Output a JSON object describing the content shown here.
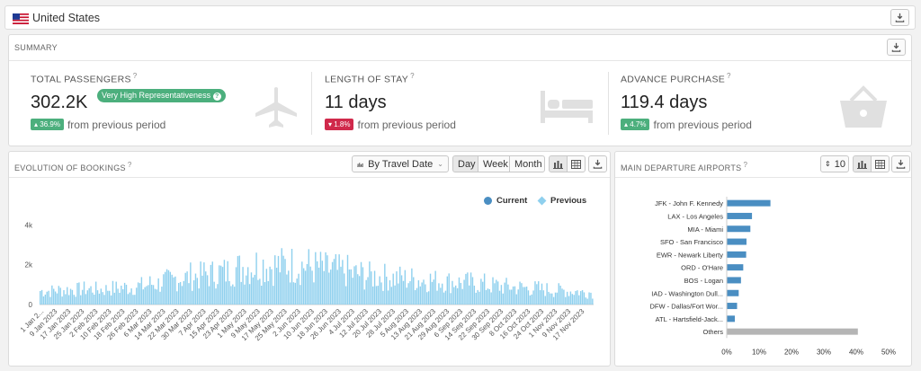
{
  "country": {
    "name": "United States",
    "flag_icon": "us-flag-icon"
  },
  "summary": {
    "title": "SUMMARY",
    "kpis": [
      {
        "label": "TOTAL PASSENGERS",
        "value": "302.2K",
        "change": "36.9%",
        "direction": "up",
        "change_text": "from previous period",
        "representativeness": "Very High Representativeness",
        "icon": "airplane-icon"
      },
      {
        "label": "LENGTH OF STAY",
        "value": "11 days",
        "change": "1.8%",
        "direction": "down",
        "change_text": "from previous period",
        "icon": "bed-icon"
      },
      {
        "label": "ADVANCE PURCHASE",
        "value": "119.4 days",
        "change": "4.7%",
        "direction": "up",
        "change_text": "from previous period",
        "icon": "basket-icon"
      }
    ]
  },
  "evolution": {
    "title": "EVOLUTION OF BOOKINGS",
    "group_by": "By Travel Date",
    "granularity": [
      "Day",
      "Week",
      "Month"
    ],
    "selected_granularity": "Day"
  },
  "airports": {
    "title": "MAIN DEPARTURE AIRPORTS",
    "top_n": "10"
  },
  "colors": {
    "current": "#4a8ec2",
    "previous": "#8fd0ee",
    "others": "#b5b5b5",
    "up": "#4caf7d",
    "down": "#d0294b"
  },
  "chart_data": [
    {
      "type": "bar",
      "title": "EVOLUTION OF BOOKINGS",
      "legend": [
        "Current",
        "Previous"
      ],
      "legend_position": "top-right",
      "y_ticks": [
        "0",
        "2k",
        "4k"
      ],
      "ylim": [
        0,
        4600
      ],
      "x_tick_labels": [
        "1 Jan 2...",
        "9 Jan 2023",
        "17 Jan 2023",
        "25 Jan 2023",
        "2 Feb 2023",
        "10 Feb 2023",
        "18 Feb 2023",
        "26 Feb 2023",
        "6 Mar 2023",
        "14 Mar 2023",
        "22 Mar 2023",
        "30 Mar 2023",
        "7 Apr 2023",
        "15 Apr 2023",
        "23 Apr 2023",
        "1 May 2023",
        "9 May 2023",
        "17 May 2023",
        "25 May 2023",
        "2 Jun 2023",
        "10 Jun 2023",
        "18 Jun 2023",
        "26 Jun 2023",
        "4 Jul 2023",
        "12 Jul 2023",
        "20 Jul 2023",
        "28 Jul 2023",
        "5 Aug 2023",
        "13 Aug 2023",
        "21 Aug 2023",
        "29 Aug 2023",
        "6 Sep 2023",
        "14 Sep 2023",
        "22 Sep 2023",
        "30 Sep 2023",
        "8 Oct 2023",
        "16 Oct 2023",
        "24 Oct 2023",
        "1 Nov 2023",
        "9 Nov 2023",
        "17 Nov 2023"
      ],
      "series": [
        {
          "name": "Current",
          "values": [
            720,
            760,
            780,
            820,
            800,
            860,
            900,
            980,
            1100,
            1250,
            1400,
            1500,
            1600,
            1700,
            1900,
            2000,
            2100,
            2050,
            2100,
            2050,
            1950,
            1850,
            1750,
            1600,
            1500,
            1450,
            1400,
            1350,
            1300,
            1250,
            1200,
            1150,
            1100,
            1000,
            950,
            900,
            850,
            800,
            750,
            700,
            650
          ]
        }
      ],
      "grid": false
    },
    {
      "type": "bar",
      "title": "MAIN DEPARTURE AIRPORTS",
      "orientation": "horizontal",
      "categories": [
        "JFK - John F. Kennedy",
        "LAX - Los Angeles",
        "MIA - Miami",
        "SFO - San Francisco",
        "EWR - Newark Liberty",
        "ORD - O'Hare",
        "BOS - Logan",
        "IAD - Washington Dull...",
        "DFW - Dallas/Fort Wor...",
        "ATL - Hartsfield-Jack...",
        "Others"
      ],
      "values": [
        13.5,
        7.8,
        7.3,
        6.1,
        6.0,
        5.1,
        4.4,
        3.7,
        3.2,
        2.5,
        40.5
      ],
      "x_ticks": [
        "0%",
        "10%",
        "20%",
        "30%",
        "40%",
        "50%"
      ],
      "xlim": [
        0,
        50
      ]
    }
  ]
}
